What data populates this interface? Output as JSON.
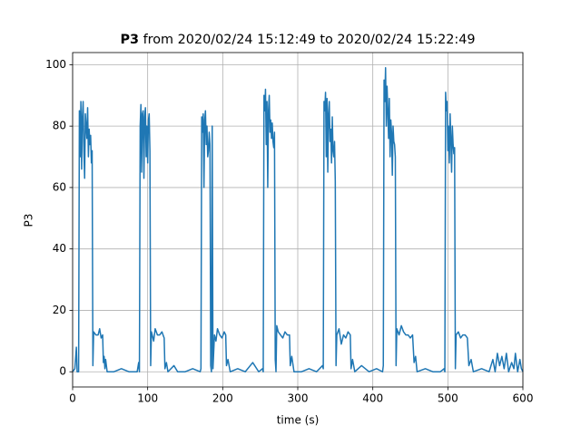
{
  "chart_data": {
    "type": "line",
    "title": {
      "bold": "P3",
      "rest": "from 2020/02/24 15:12:49 to 2020/02/24 15:22:49"
    },
    "xlabel": "time (s)",
    "ylabel": "P3",
    "xlim": [
      0,
      600
    ],
    "xticks": [
      0,
      100,
      200,
      300,
      400,
      500,
      600
    ],
    "ylim": [
      -4.95,
      103.95
    ],
    "yticks": [
      0,
      20,
      40,
      60,
      80,
      100
    ],
    "grid": true,
    "color": "#1f77b4",
    "x": [
      0,
      3,
      5,
      6,
      8,
      9,
      10,
      11,
      12,
      13,
      14,
      15,
      16,
      17,
      18,
      19,
      20,
      21,
      22,
      23,
      24,
      25,
      26,
      27,
      28,
      31,
      34,
      36,
      38,
      40,
      41,
      42,
      43,
      44,
      46,
      55,
      65,
      75,
      86,
      88,
      89,
      90,
      91,
      92,
      93,
      94,
      95,
      96,
      97,
      98,
      99,
      100,
      101,
      102,
      103,
      104,
      105,
      108,
      110,
      113,
      116,
      119,
      122,
      123,
      125,
      127,
      135,
      140,
      150,
      160,
      170,
      171,
      172,
      173,
      174,
      175,
      176,
      177,
      178,
      179,
      180,
      181,
      182,
      183,
      184,
      185,
      186,
      187,
      189,
      191,
      193,
      196,
      199,
      202,
      204,
      205,
      207,
      210,
      220,
      230,
      240,
      248,
      253,
      254,
      255,
      256,
      257,
      258,
      259,
      260,
      261,
      262,
      263,
      264,
      265,
      266,
      267,
      268,
      269,
      270,
      271,
      272,
      274,
      277,
      280,
      283,
      286,
      289,
      290,
      292,
      295,
      305,
      315,
      325,
      333,
      334,
      335,
      336,
      337,
      338,
      339,
      340,
      341,
      342,
      343,
      344,
      345,
      346,
      347,
      348,
      349,
      350,
      351,
      352,
      355,
      358,
      361,
      364,
      367,
      370,
      371,
      373,
      376,
      385,
      395,
      405,
      413,
      414,
      415,
      416,
      417,
      418,
      419,
      420,
      421,
      422,
      423,
      424,
      425,
      426,
      427,
      428,
      429,
      430,
      431,
      432,
      435,
      438,
      441,
      444,
      447,
      450,
      453,
      455,
      457,
      459,
      470,
      480,
      490,
      495,
      496,
      497,
      498,
      499,
      500,
      501,
      502,
      503,
      504,
      505,
      506,
      507,
      508,
      509,
      510,
      511,
      514,
      517,
      520,
      523,
      526,
      528,
      531,
      534,
      545,
      555,
      560,
      563,
      566,
      569,
      572,
      575,
      578,
      581,
      585,
      588,
      590,
      593,
      596,
      598,
      600
    ],
    "values": [
      0,
      1,
      8,
      0,
      0,
      85,
      70,
      88,
      66,
      83,
      88,
      72,
      63,
      84,
      80,
      76,
      86,
      70,
      79,
      74,
      77,
      68,
      72,
      2,
      13,
      12,
      12,
      14,
      11,
      12,
      3,
      5,
      1,
      4,
      0,
      0,
      1,
      0,
      0,
      3,
      0,
      80,
      87,
      65,
      84,
      85,
      63,
      83,
      86,
      70,
      80,
      68,
      82,
      84,
      72,
      2,
      13,
      10,
      14,
      12,
      12,
      13,
      11,
      1,
      3,
      0,
      2,
      0,
      0,
      1,
      0,
      1,
      83,
      78,
      84,
      60,
      82,
      85,
      74,
      80,
      70,
      72,
      78,
      74,
      2,
      0,
      80,
      1,
      12,
      10,
      14,
      12,
      11,
      13,
      12,
      2,
      4,
      0,
      1,
      0,
      3,
      0,
      1,
      0,
      90,
      85,
      92,
      74,
      88,
      60,
      85,
      90,
      78,
      82,
      76,
      81,
      75,
      73,
      78,
      4,
      0,
      15,
      13,
      12,
      11,
      13,
      12,
      12,
      2,
      5,
      0,
      0,
      1,
      0,
      2,
      1,
      88,
      85,
      91,
      70,
      89,
      65,
      84,
      88,
      75,
      79,
      68,
      83,
      72,
      70,
      75,
      62,
      2,
      12,
      14,
      9,
      12,
      11,
      13,
      12,
      1,
      4,
      0,
      2,
      0,
      1,
      0,
      2,
      95,
      88,
      99,
      80,
      93,
      85,
      76,
      89,
      70,
      82,
      78,
      64,
      80,
      75,
      74,
      70,
      2,
      14,
      12,
      15,
      13,
      12,
      12,
      11,
      12,
      3,
      5,
      0,
      1,
      0,
      0,
      1,
      0,
      91,
      85,
      88,
      72,
      80,
      68,
      84,
      76,
      65,
      80,
      74,
      71,
      73,
      1,
      12,
      13,
      11,
      12,
      12,
      11,
      2,
      4,
      0,
      1,
      0,
      4,
      0,
      6,
      2,
      5,
      1,
      6,
      0,
      3,
      1,
      6,
      0,
      4,
      1,
      0
    ]
  }
}
